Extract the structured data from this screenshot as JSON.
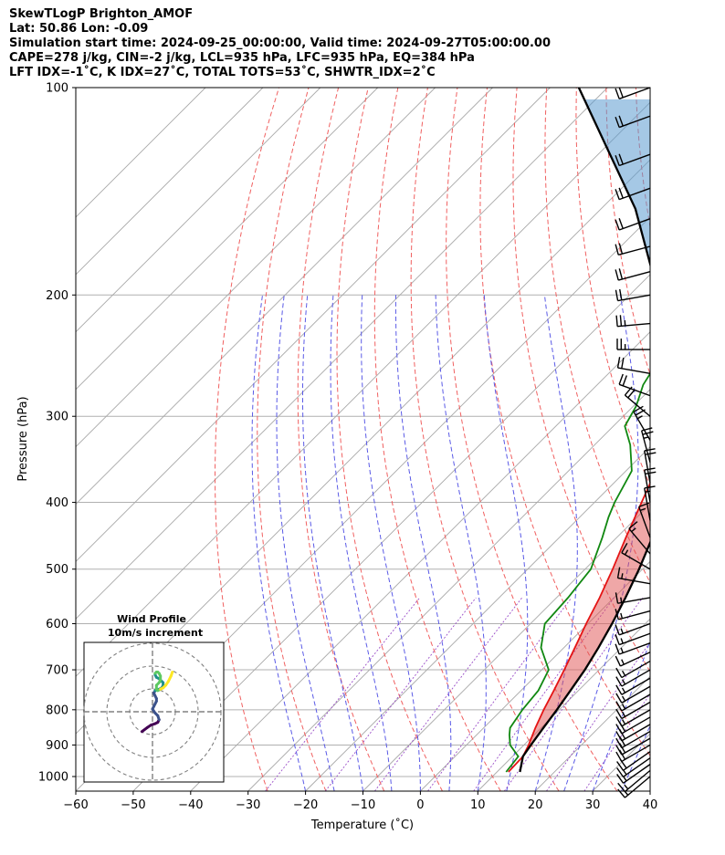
{
  "header": {
    "line1": "SkewTLogP Brighton_AMOF",
    "line2": "Lat: 50.86   Lon: -0.09",
    "line3": "Simulation start time: 2024-09-25_00:00:00, Valid time: 2024-09-27T05:00:00.00",
    "line4": "CAPE=278 j/kg, CIN=-2 j/kg, LCL=935 hPa, LFC=935 hPa, EQ=384 hPa",
    "line5": "LFT IDX=-1˚C, K IDX=27˚C, TOTAL TOTS=53˚C, SHWTR_IDX=2˚C"
  },
  "chart_data": {
    "type": "line",
    "xlabel": "Temperature (˚C)",
    "ylabel": "Pressure (hPa)",
    "xlim": [
      -60,
      40
    ],
    "ylim": [
      1050,
      100
    ],
    "y_scale": "log",
    "x_ticks": [
      -60,
      -50,
      -40,
      -30,
      -20,
      -10,
      0,
      10,
      20,
      30,
      40
    ],
    "x_tick_labels": [
      "−60",
      "−50",
      "−40",
      "−30",
      "−20",
      "−10",
      "0",
      "10",
      "20",
      "30",
      "40"
    ],
    "y_ticks": [
      1000,
      900,
      800,
      700,
      600,
      500,
      400,
      300,
      200,
      100
    ],
    "grid": true,
    "series": [
      {
        "color": "#e41414",
        "pressure": [
          985,
          935,
          900,
          850,
          800,
          750,
          700,
          650,
          600,
          550,
          500,
          450,
          400,
          360,
          330,
          315,
          300,
          280,
          260,
          240,
          220,
          200,
          180,
          160,
          140,
          120,
          110,
          100
        ],
        "values": [
          12.0,
          11.8,
          10.8,
          9.0,
          7.3,
          5.7,
          3.9,
          1.9,
          -0.3,
          -2.5,
          -5.2,
          -8.4,
          -11.8,
          -14.8,
          -15.0,
          -13.5,
          -12.5,
          -10.5,
          -8.0,
          -4.5,
          -1.5,
          0.6,
          2.2,
          4.4,
          6.8,
          8.2,
          10.0,
          13.0
        ]
      },
      {
        "color": "#118811",
        "pressure": [
          985,
          935,
          900,
          870,
          850,
          800,
          750,
          700,
          650,
          600,
          550,
          500,
          450,
          420,
          400,
          360,
          330,
          310,
          290,
          270,
          250,
          230,
          210,
          200,
          180,
          160,
          140,
          120,
          110,
          100
        ],
        "values": [
          11.6,
          11.0,
          7.6,
          5.7,
          4.6,
          3.6,
          3.0,
          1.2,
          -4.0,
          -7.5,
          -8.0,
          -9.0,
          -12.5,
          -15.0,
          -16.5,
          -19.0,
          -23.8,
          -28.0,
          -29.5,
          -32.0,
          -33.5,
          -35.0,
          -37.0,
          -38.0,
          -35.0,
          -32.0,
          -29.0,
          -26.0,
          -24.5,
          -23.5
        ]
      },
      {
        "color": "#000000",
        "pressure": [
          985,
          935,
          900,
          850,
          800,
          750,
          700,
          650,
          600,
          550,
          500,
          450,
          400,
          384,
          350,
          300,
          250,
          200,
          150,
          100
        ],
        "values": [
          14.0,
          11.8,
          11.2,
          10.4,
          9.6,
          8.6,
          7.5,
          6.0,
          4.2,
          2.0,
          -0.6,
          -3.8,
          -8.2,
          -9.8,
          -14.0,
          -21.6,
          -31.5,
          -45.0,
          -64.0,
          -95.0
        ]
      }
    ],
    "wind_barbs": {
      "pressure": [
        1000,
        980,
        960,
        940,
        920,
        900,
        880,
        860,
        840,
        820,
        800,
        780,
        760,
        740,
        720,
        700,
        680,
        660,
        640,
        620,
        600,
        575,
        550,
        525,
        500,
        475,
        450,
        425,
        400,
        375,
        350,
        325,
        300,
        280,
        260,
        240,
        220,
        200,
        185,
        170,
        155,
        140,
        125,
        110,
        100
      ],
      "speed_kt": [
        15,
        15,
        15,
        15,
        20,
        20,
        20,
        20,
        20,
        20,
        15,
        15,
        15,
        15,
        15,
        15,
        15,
        15,
        15,
        15,
        15,
        15,
        15,
        15,
        15,
        15,
        15,
        15,
        20,
        20,
        25,
        25,
        20,
        20,
        20,
        25,
        25,
        20,
        20,
        20,
        20,
        20,
        20,
        20,
        20
      ],
      "direction_deg": [
        230,
        230,
        235,
        235,
        235,
        240,
        240,
        240,
        240,
        240,
        240,
        240,
        240,
        240,
        240,
        240,
        240,
        245,
        250,
        250,
        250,
        255,
        260,
        280,
        300,
        320,
        340,
        350,
        350,
        350,
        345,
        330,
        310,
        290,
        280,
        270,
        265,
        260,
        255,
        255,
        250,
        250,
        250,
        250,
        250
      ]
    },
    "inset": {
      "title": "Wind Profile",
      "subtitle": "10m/s increment",
      "hodograph_u": [
        -8,
        -4,
        -1,
        2,
        4,
        5,
        4,
        2,
        0,
        1,
        2,
        3,
        3,
        2,
        1,
        2,
        5,
        7,
        8,
        8,
        7,
        5,
        3,
        2,
        2,
        3,
        4,
        5,
        6,
        6,
        5,
        3,
        3,
        4,
        6,
        8,
        10,
        12,
        14,
        15
      ],
      "hodograph_v": [
        -15,
        -12,
        -10,
        -9,
        -8,
        -6,
        -3,
        -1,
        2,
        4,
        6,
        8,
        10,
        12,
        14,
        16,
        17,
        18,
        20,
        22,
        23,
        25,
        26,
        28,
        29,
        30,
        30,
        29,
        27,
        24,
        22,
        20,
        17,
        16,
        17,
        18,
        20,
        23,
        27,
        30
      ]
    }
  }
}
